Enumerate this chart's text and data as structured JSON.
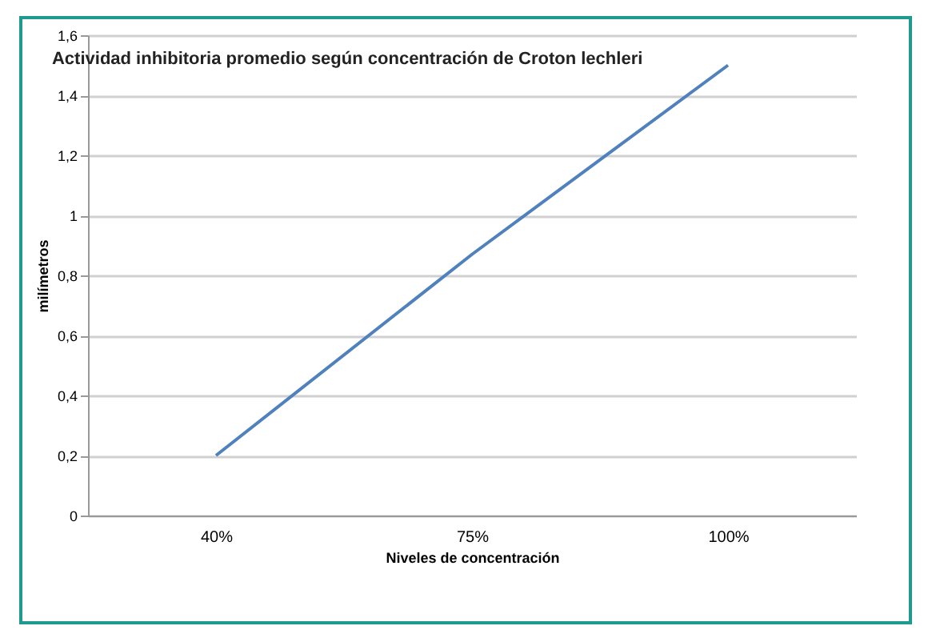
{
  "chart_data": {
    "type": "line",
    "title": "Actividad inhibitoria promedio según concentración de Croton lechleri",
    "xlabel": "Niveles de concentración",
    "ylabel": "milímetros",
    "categories": [
      "40%",
      "75%",
      "100%"
    ],
    "series": [
      {
        "color": "#4f81bd",
        "values": [
          0.2,
          0.87,
          1.5
        ]
      }
    ],
    "ylim": [
      0,
      1.6
    ],
    "yticks": [
      0,
      {
        "value": 0.2,
        "label": "0,2"
      },
      {
        "value": 0.4,
        "label": "0,4"
      },
      {
        "value": 0.6,
        "label": "0,6"
      },
      {
        "value": 0.8,
        "label": "0,8"
      },
      1,
      {
        "value": 1.2,
        "label": "1,2"
      },
      {
        "value": 1.4,
        "label": "1,4"
      },
      {
        "value": 1.6,
        "label": "1,6"
      }
    ],
    "grid": "y",
    "marker": "none",
    "line_style": "solid"
  }
}
